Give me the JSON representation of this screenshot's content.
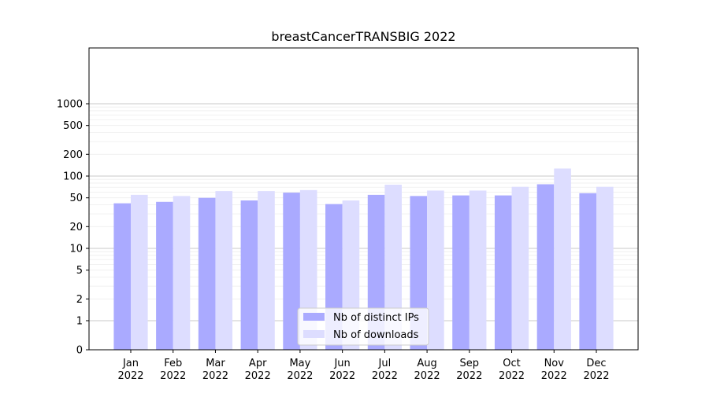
{
  "chart_data": {
    "type": "bar",
    "title": "breastCancerTRANSBIG 2022",
    "xlabel": "",
    "ylabel": "",
    "scale": "symlog",
    "ylim": [
      0,
      1300
    ],
    "yticks": [
      0,
      1,
      2,
      5,
      10,
      20,
      50,
      100,
      200,
      500,
      1000
    ],
    "categories": [
      "Jan\n2022",
      "Feb\n2022",
      "Mar\n2022",
      "Apr\n2022",
      "May\n2022",
      "Jun\n2022",
      "Jul\n2022",
      "Aug\n2022",
      "Sep\n2022",
      "Oct\n2022",
      "Nov\n2022",
      "Dec\n2022"
    ],
    "series": [
      {
        "name": "Nb of distinct IPs",
        "color": "#aaaaff",
        "values": [
          42,
          44,
          50,
          46,
          59,
          41,
          55,
          53,
          54,
          54,
          77,
          58
        ]
      },
      {
        "name": "Nb of downloads",
        "color": "#ddddff",
        "values": [
          55,
          53,
          62,
          62,
          64,
          46,
          76,
          63,
          63,
          71,
          127,
          71
        ]
      }
    ],
    "grid": true,
    "legend": "bottom-center"
  }
}
